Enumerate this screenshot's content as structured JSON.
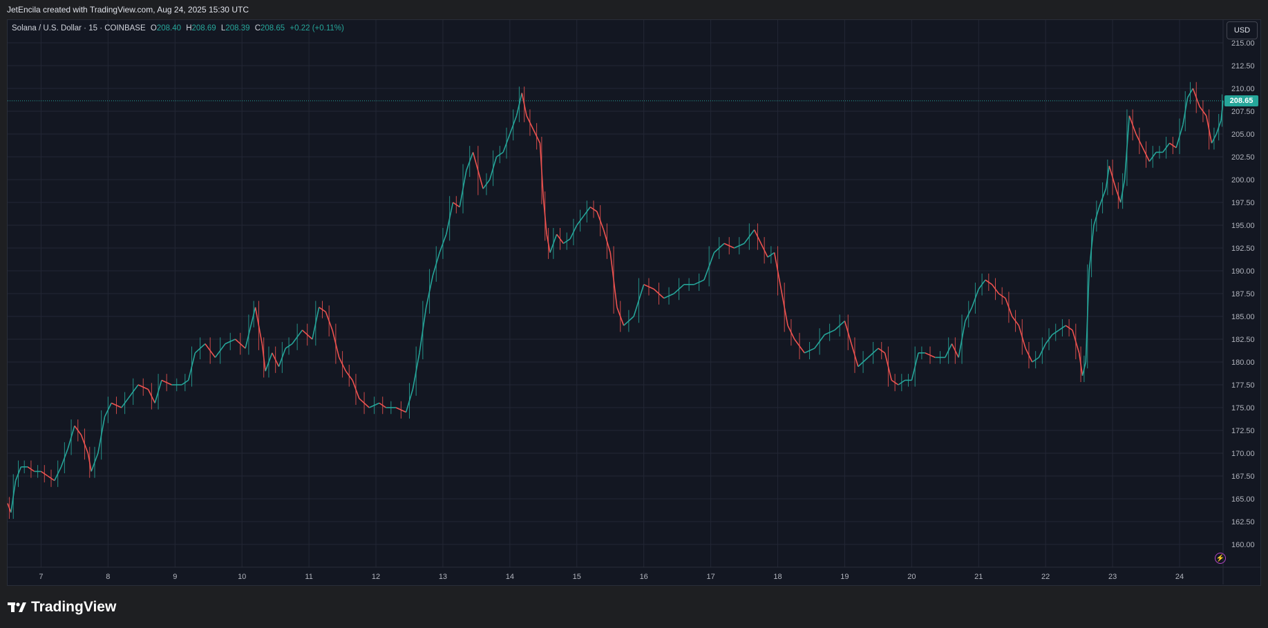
{
  "header": {
    "attribution": "JetEncila created with TradingView.com, Aug 24, 2025 15:30 UTC"
  },
  "legend": {
    "symbol": "Solana / U.S. Dollar · 15 · COINBASE",
    "o_label": "O",
    "o_value": "208.40",
    "h_label": "H",
    "h_value": "208.69",
    "l_label": "L",
    "l_value": "208.39",
    "c_label": "C",
    "c_value": "208.65",
    "change": "+0.22 (+0.11%)"
  },
  "currency_button": "USD",
  "last_price_label": "208.65",
  "brand": {
    "name": "TradingView"
  },
  "colors": {
    "up": "#26a69a",
    "down": "#ef5350",
    "background": "#131722",
    "grid": "#232735",
    "axis_text": "#b2b5be",
    "last_price_line": "#26a69a"
  },
  "chart_data": {
    "type": "line",
    "symbol": "Solana / U.S. Dollar",
    "interval": "15",
    "exchange": "COINBASE",
    "currency": "USD",
    "grid": true,
    "last_price": 208.65,
    "ylim": [
      157.5,
      217.5
    ],
    "y_ticks": [
      160,
      162.5,
      165,
      167.5,
      170,
      172.5,
      175,
      177.5,
      180,
      182.5,
      185,
      187.5,
      190,
      192.5,
      195,
      197.5,
      200,
      202.5,
      205,
      207.5,
      210,
      212.5,
      215
    ],
    "y_tick_labels": [
      "160.00",
      "162.50",
      "165.00",
      "167.50",
      "170.00",
      "172.50",
      "175.00",
      "177.50",
      "180.00",
      "182.50",
      "185.00",
      "187.50",
      "190.00",
      "192.50",
      "195.00",
      "197.50",
      "200.00",
      "202.50",
      "205.00",
      "207.50",
      "210.00",
      "212.50",
      "215.00"
    ],
    "xlim": [
      6.5,
      24.65
    ],
    "x_ticks": [
      7,
      8,
      9,
      10,
      11,
      12,
      13,
      14,
      15,
      16,
      17,
      18,
      19,
      20,
      21,
      22,
      23,
      24
    ],
    "x_tick_labels": [
      "7",
      "8",
      "9",
      "10",
      "11",
      "12",
      "13",
      "14",
      "15",
      "16",
      "17",
      "18",
      "19",
      "20",
      "21",
      "22",
      "23",
      "24"
    ],
    "series": [
      {
        "points": [
          [
            6.5,
            164.5
          ],
          [
            6.55,
            163.5
          ],
          [
            6.62,
            167.0
          ],
          [
            6.7,
            168.5
          ],
          [
            6.8,
            168.5
          ],
          [
            6.9,
            168.0
          ],
          [
            7.0,
            168.0
          ],
          [
            7.1,
            167.5
          ],
          [
            7.2,
            167.0
          ],
          [
            7.3,
            168.5
          ],
          [
            7.4,
            170.5
          ],
          [
            7.5,
            173.0
          ],
          [
            7.6,
            172.0
          ],
          [
            7.7,
            170.0
          ],
          [
            7.75,
            168.0
          ],
          [
            7.85,
            170.0
          ],
          [
            7.95,
            174.0
          ],
          [
            8.05,
            175.5
          ],
          [
            8.2,
            175.0
          ],
          [
            8.3,
            176.0
          ],
          [
            8.45,
            177.5
          ],
          [
            8.6,
            177.0
          ],
          [
            8.7,
            175.5
          ],
          [
            8.8,
            178.0
          ],
          [
            8.95,
            177.5
          ],
          [
            9.1,
            177.5
          ],
          [
            9.2,
            178.0
          ],
          [
            9.3,
            181.0
          ],
          [
            9.45,
            182.0
          ],
          [
            9.6,
            180.5
          ],
          [
            9.75,
            182.0
          ],
          [
            9.9,
            182.5
          ],
          [
            10.05,
            181.5
          ],
          [
            10.15,
            184.5
          ],
          [
            10.2,
            186.0
          ],
          [
            10.3,
            182.0
          ],
          [
            10.35,
            179.0
          ],
          [
            10.45,
            181.0
          ],
          [
            10.55,
            179.5
          ],
          [
            10.65,
            181.5
          ],
          [
            10.75,
            182.0
          ],
          [
            10.9,
            183.5
          ],
          [
            11.05,
            182.5
          ],
          [
            11.15,
            186.0
          ],
          [
            11.25,
            185.5
          ],
          [
            11.35,
            183.5
          ],
          [
            11.45,
            180.5
          ],
          [
            11.55,
            179.0
          ],
          [
            11.65,
            178.0
          ],
          [
            11.75,
            176.0
          ],
          [
            11.9,
            175.0
          ],
          [
            12.05,
            175.5
          ],
          [
            12.15,
            175.0
          ],
          [
            12.3,
            175.0
          ],
          [
            12.45,
            174.5
          ],
          [
            12.55,
            177.0
          ],
          [
            12.65,
            181.0
          ],
          [
            12.75,
            186.0
          ],
          [
            12.85,
            189.5
          ],
          [
            12.95,
            192.0
          ],
          [
            13.05,
            194.0
          ],
          [
            13.15,
            197.5
          ],
          [
            13.25,
            197.0
          ],
          [
            13.35,
            201.0
          ],
          [
            13.45,
            203.0
          ],
          [
            13.6,
            199.0
          ],
          [
            13.7,
            200.0
          ],
          [
            13.8,
            202.5
          ],
          [
            13.9,
            203.0
          ],
          [
            14.0,
            205.0
          ],
          [
            14.1,
            207.0
          ],
          [
            14.18,
            209.5
          ],
          [
            14.25,
            207.0
          ],
          [
            14.35,
            205.5
          ],
          [
            14.45,
            204.0
          ],
          [
            14.5,
            198.0
          ],
          [
            14.55,
            194.0
          ],
          [
            14.6,
            192.0
          ],
          [
            14.7,
            194.0
          ],
          [
            14.8,
            193.0
          ],
          [
            14.9,
            193.5
          ],
          [
            15.0,
            195.0
          ],
          [
            15.1,
            196.0
          ],
          [
            15.2,
            197.0
          ],
          [
            15.3,
            196.5
          ],
          [
            15.4,
            194.5
          ],
          [
            15.5,
            192.0
          ],
          [
            15.6,
            186.0
          ],
          [
            15.7,
            184.0
          ],
          [
            15.85,
            185.0
          ],
          [
            16.0,
            188.5
          ],
          [
            16.15,
            188.0
          ],
          [
            16.3,
            187.0
          ],
          [
            16.45,
            187.5
          ],
          [
            16.6,
            188.5
          ],
          [
            16.75,
            188.5
          ],
          [
            16.9,
            189.0
          ],
          [
            17.05,
            192.0
          ],
          [
            17.2,
            193.0
          ],
          [
            17.35,
            192.5
          ],
          [
            17.5,
            193.0
          ],
          [
            17.65,
            194.5
          ],
          [
            17.75,
            193.0
          ],
          [
            17.85,
            191.5
          ],
          [
            17.95,
            192.0
          ],
          [
            18.05,
            188.0
          ],
          [
            18.15,
            184.0
          ],
          [
            18.25,
            182.5
          ],
          [
            18.4,
            181.0
          ],
          [
            18.55,
            181.5
          ],
          [
            18.7,
            183.0
          ],
          [
            18.85,
            183.5
          ],
          [
            19.0,
            184.5
          ],
          [
            19.1,
            182.0
          ],
          [
            19.2,
            179.5
          ],
          [
            19.35,
            180.5
          ],
          [
            19.5,
            181.5
          ],
          [
            19.6,
            181.0
          ],
          [
            19.7,
            178.0
          ],
          [
            19.8,
            177.5
          ],
          [
            19.9,
            178.0
          ],
          [
            20.0,
            178.0
          ],
          [
            20.1,
            181.0
          ],
          [
            20.2,
            181.0
          ],
          [
            20.35,
            180.5
          ],
          [
            20.5,
            180.5
          ],
          [
            20.6,
            182.0
          ],
          [
            20.7,
            180.5
          ],
          [
            20.8,
            184.5
          ],
          [
            20.9,
            186.0
          ],
          [
            21.0,
            188.0
          ],
          [
            21.1,
            189.0
          ],
          [
            21.2,
            188.5
          ],
          [
            21.3,
            187.5
          ],
          [
            21.4,
            187.0
          ],
          [
            21.5,
            185.0
          ],
          [
            21.6,
            184.0
          ],
          [
            21.7,
            181.5
          ],
          [
            21.8,
            180.0
          ],
          [
            21.9,
            180.5
          ],
          [
            22.0,
            182.0
          ],
          [
            22.1,
            183.0
          ],
          [
            22.2,
            183.5
          ],
          [
            22.3,
            184.0
          ],
          [
            22.4,
            183.5
          ],
          [
            22.5,
            181.0
          ],
          [
            22.55,
            178.5
          ],
          [
            22.6,
            180.0
          ],
          [
            22.65,
            190.0
          ],
          [
            22.72,
            195.0
          ],
          [
            22.8,
            197.0
          ],
          [
            22.9,
            199.0
          ],
          [
            22.95,
            201.5
          ],
          [
            23.05,
            199.0
          ],
          [
            23.12,
            197.5
          ],
          [
            23.18,
            200.0
          ],
          [
            23.25,
            207.0
          ],
          [
            23.35,
            205.0
          ],
          [
            23.45,
            203.5
          ],
          [
            23.55,
            202.0
          ],
          [
            23.65,
            203.0
          ],
          [
            23.75,
            203.0
          ],
          [
            23.85,
            204.0
          ],
          [
            23.95,
            203.5
          ],
          [
            24.05,
            206.0
          ],
          [
            24.12,
            209.0
          ],
          [
            24.2,
            210.0
          ],
          [
            24.3,
            208.0
          ],
          [
            24.4,
            207.0
          ],
          [
            24.48,
            204.0
          ],
          [
            24.55,
            205.0
          ],
          [
            24.62,
            206.5
          ],
          [
            24.65,
            208.65
          ]
        ]
      }
    ]
  }
}
